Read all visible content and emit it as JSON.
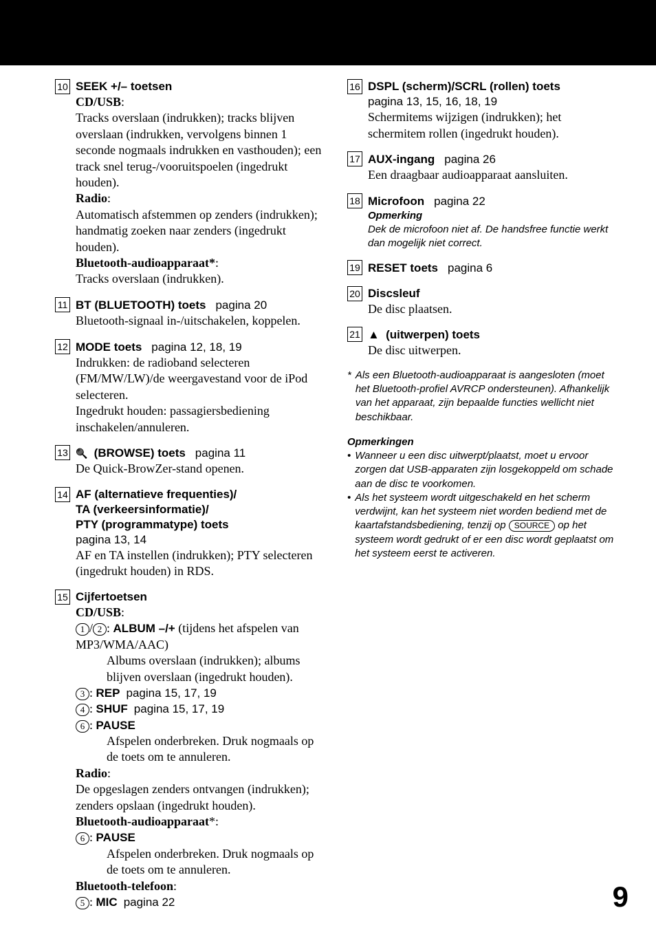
{
  "page_number": "9",
  "left_items": [
    {
      "num": "10",
      "title": "SEEK +/– toetsen",
      "sections": [
        {
          "heading": "CD/USB",
          "colon": ":",
          "text": "Tracks overslaan (indrukken); tracks blijven overslaan (indrukken, vervolgens binnen 1 seconde nogmaals indrukken en vasthouden); een track snel terug-/vooruitspoelen (ingedrukt houden)."
        },
        {
          "heading": "Radio",
          "colon": ":",
          "text": "Automatisch afstemmen op zenders (indrukken); handmatig zoeken naar zenders (ingedrukt houden)."
        },
        {
          "heading": "Bluetooth-audioapparaat*",
          "colon": ":",
          "text": "Tracks overslaan (indrukken)."
        }
      ]
    },
    {
      "num": "11",
      "title": "BT (BLUETOOTH) toets",
      "page_ref": "pagina 20",
      "body": "Bluetooth-signaal in-/uitschakelen, koppelen."
    },
    {
      "num": "12",
      "title": "MODE toets",
      "page_ref": "pagina 12, 18, 19",
      "body": "Indrukken: de radioband selecteren (FM/MW/LW)/de weergavestand voor de iPod selecteren.\nIngedrukt houden: passagiersbediening inschakelen/annuleren."
    },
    {
      "num": "13",
      "icon": "search",
      "title": "(BROWSE) toets",
      "page_ref": "pagina 11",
      "body": "De Quick-BrowZer-stand openen."
    },
    {
      "num": "14",
      "title": "AF (alternatieve frequenties)/\nTA (verkeersinformatie)/\nPTY (programmatype) toets",
      "page_ref_line": "pagina 13, 14",
      "body": "AF en TA instellen (indrukken); PTY selecteren (ingedrukt houden) in RDS."
    },
    {
      "num": "15",
      "title": "Cijfertoetsen",
      "cd_usb": {
        "heading": "CD/USB",
        "colon": ":",
        "album_keys": [
          "1",
          "2"
        ],
        "album_label": "ALBUM –/+",
        "album_desc": "(tijdens het afspelen van MP3/WMA/AAC)",
        "album_body": "Albums overslaan (indrukken); albums blijven overslaan (ingedrukt houden).",
        "rows": [
          {
            "key": "3",
            "label": "REP",
            "ref": "pagina 15, 17, 19"
          },
          {
            "key": "4",
            "label": "SHUF",
            "ref": "pagina 15, 17, 19"
          },
          {
            "key": "6",
            "label": "PAUSE",
            "body": "Afspelen onderbreken. Druk nogmaals op de toets om te annuleren."
          }
        ]
      },
      "radio": {
        "heading": "Radio",
        "colon": ":",
        "body": "De opgeslagen zenders ontvangen (indrukken); zenders opslaan (ingedrukt houden)."
      },
      "bt_audio": {
        "heading": "Bluetooth-audioapparaat",
        "star": "*",
        "colon": ":",
        "key": "6",
        "label": "PAUSE",
        "body": "Afspelen onderbreken. Druk nogmaals op de toets om te annuleren."
      },
      "bt_phone": {
        "heading": "Bluetooth-telefoon",
        "colon": ":",
        "key": "5",
        "label": "MIC",
        "ref": "pagina 22"
      }
    }
  ],
  "right_items": [
    {
      "num": "16",
      "title": "DSPL (scherm)/SCRL (rollen) toets",
      "page_ref_line": "pagina 13, 15, 16, 18, 19",
      "body": "Schermitems wijzigen (indrukken); het schermitem rollen (ingedrukt houden)."
    },
    {
      "num": "17",
      "title": "AUX-ingang",
      "page_ref": "pagina 26",
      "body": "Een draagbaar audioapparaat aansluiten."
    },
    {
      "num": "18",
      "title": "Microfoon",
      "page_ref": "pagina 22",
      "note_heading": "Opmerking",
      "note_body": "Dek de microfoon niet af. De handsfree functie werkt dan mogelijk niet correct."
    },
    {
      "num": "19",
      "title": "RESET toets",
      "page_ref": "pagina 6"
    },
    {
      "num": "20",
      "title": "Discsleuf",
      "body": "De disc plaatsen."
    },
    {
      "num": "21",
      "icon": "eject",
      "title": "(uitwerpen) toets",
      "body": "De disc uitwerpen."
    }
  ],
  "footnote": {
    "star": "*",
    "text": "Als een Bluetooth-audioapparaat is aangesloten (moet het Bluetooth-profiel AVRCP ondersteunen). Afhankelijk van het apparaat, zijn bepaalde functies wellicht niet beschikbaar."
  },
  "notes": {
    "heading": "Opmerkingen",
    "bullets": [
      "Wanneer u een disc uitwerpt/plaatst, moet u ervoor zorgen dat USB-apparaten zijn losgekoppeld om schade aan de disc te voorkomen.",
      {
        "pre": "Als het systeem wordt uitgeschakeld en het scherm verdwijnt, kan het systeem niet worden bediend met de kaartafstandsbediening, tenzij op ",
        "btn": "SOURCE",
        "post": " op het systeem wordt gedrukt of er een disc wordt geplaatst om het systeem eerst te activeren."
      }
    ]
  }
}
